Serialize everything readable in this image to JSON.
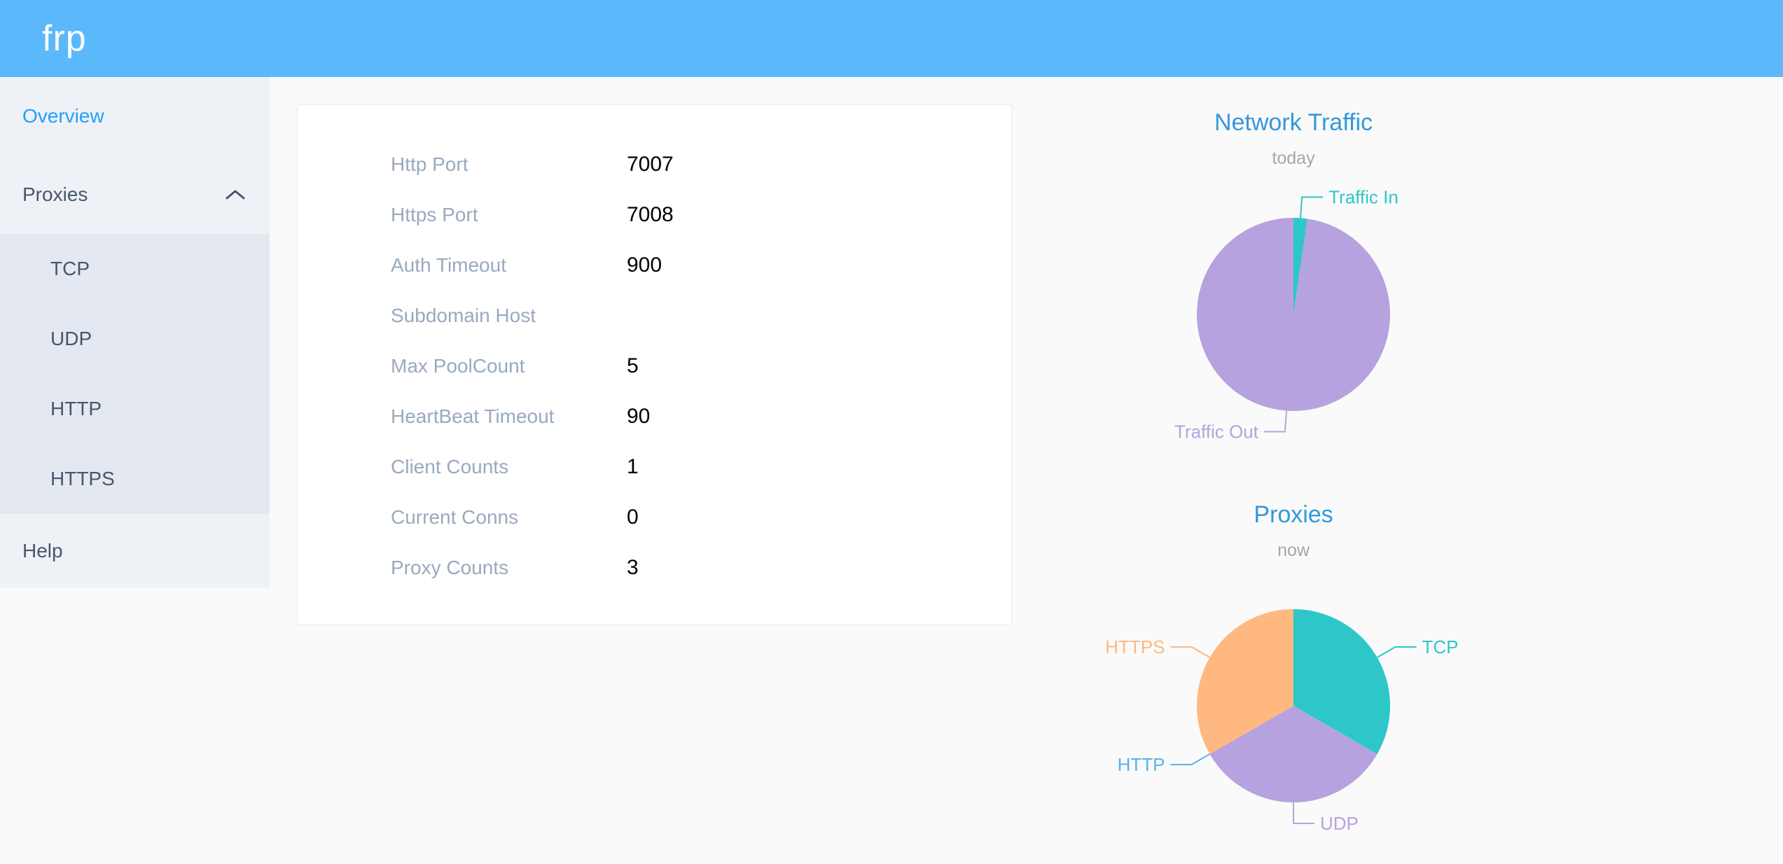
{
  "header": {
    "logo_text": "frp"
  },
  "sidebar": {
    "items": [
      {
        "label": "Overview",
        "state": "active"
      },
      {
        "label": "Proxies",
        "state": "expanded",
        "children": [
          {
            "label": "TCP"
          },
          {
            "label": "UDP"
          },
          {
            "label": "HTTP"
          },
          {
            "label": "HTTPS"
          }
        ]
      },
      {
        "label": "Help",
        "state": "normal"
      }
    ]
  },
  "overview_card": {
    "rows": [
      {
        "label": "Http Port",
        "value": "7007"
      },
      {
        "label": "Https Port",
        "value": "7008"
      },
      {
        "label": "Auth Timeout",
        "value": "900"
      },
      {
        "label": "Subdomain Host",
        "value": ""
      },
      {
        "label": "Max PoolCount",
        "value": "5"
      },
      {
        "label": "HeartBeat Timeout",
        "value": "90"
      },
      {
        "label": "Client Counts",
        "value": "1"
      },
      {
        "label": "Current Conns",
        "value": "0"
      },
      {
        "label": "Proxy Counts",
        "value": "3"
      }
    ]
  },
  "chart_data": [
    {
      "type": "pie",
      "title": "Network Traffic",
      "subtitle": "today",
      "labels": [
        "Traffic In",
        "Traffic Out"
      ],
      "values": [
        2.3,
        97.7
      ],
      "colors": [
        "#2ec7c9",
        "#b6a2de"
      ],
      "start_angle_deg": 90,
      "direction": "clockwise",
      "label_layout": "outside-leader-lines",
      "legend_position": "none"
    },
    {
      "type": "pie",
      "title": "Proxies",
      "subtitle": "now",
      "labels": [
        "TCP",
        "UDP",
        "HTTP",
        "HTTPS"
      ],
      "values": [
        1,
        1,
        0,
        1
      ],
      "colors": [
        "#2ec7c9",
        "#b6a2de",
        "#5ab1ef",
        "#ffb980"
      ],
      "start_angle_deg": 90,
      "direction": "clockwise",
      "label_layout": "outside-leader-lines",
      "legend_position": "none"
    }
  ],
  "theme": {
    "header_background": "#5bb8fb",
    "menu_active_color": "#20a0ff",
    "menu_text_color": "#48576a",
    "sidebar_background": "#eef1f6",
    "submenu_background": "#e4e8f1",
    "card_label_color": "#99a9bf",
    "card_value_color": "#000000",
    "chart_title_color": "#3398db",
    "chart_subtitle_color": "#a6a6a6",
    "page_background": "#fafafa"
  }
}
